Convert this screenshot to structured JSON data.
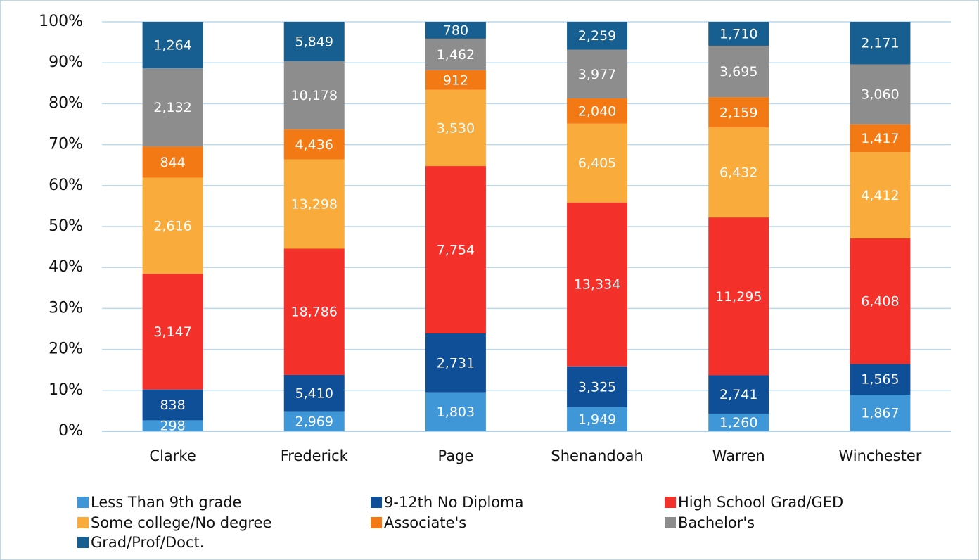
{
  "chart_data": {
    "type": "bar",
    "stacked": "percent",
    "categories": [
      "Clarke",
      "Frederick",
      "Page",
      "Shenandoah",
      "Warren",
      "Winchester"
    ],
    "series": [
      {
        "name": "Less Than 9th grade",
        "color": "#3f97d8",
        "values": [
          298,
          2969,
          1803,
          1949,
          1260,
          1867
        ],
        "value_labels": [
          "298",
          "2,969",
          "1,803",
          "1,949",
          "1,260",
          "1,867"
        ]
      },
      {
        "name": "9-12th No Diploma",
        "color": "#0f4f98",
        "values": [
          838,
          5410,
          2731,
          3325,
          2741,
          1565
        ],
        "value_labels": [
          "838",
          "5,410",
          "2,731",
          "3,325",
          "2,741",
          "1,565"
        ]
      },
      {
        "name": "High School Grad/GED",
        "color": "#f3302a",
        "values": [
          3147,
          18786,
          7754,
          13334,
          11295,
          6408
        ],
        "value_labels": [
          "3,147",
          "18,786",
          "7,754",
          "13,334",
          "11,295",
          "6,408"
        ]
      },
      {
        "name": "Some college/No degree",
        "color": "#f9ab3c",
        "values": [
          2616,
          13298,
          3530,
          6405,
          6432,
          4412
        ],
        "value_labels": [
          "2,616",
          "13,298",
          "3,530",
          "6,405",
          "6,432",
          "4,412"
        ]
      },
      {
        "name": "Associate's",
        "color": "#f37915",
        "values": [
          844,
          4436,
          912,
          2040,
          2159,
          1417
        ],
        "value_labels": [
          "844",
          "4,436",
          "912",
          "2,040",
          "2,159",
          "1,417"
        ]
      },
      {
        "name": "Bachelor's",
        "color": "#8d8d8d",
        "values": [
          2132,
          10178,
          1462,
          3977,
          3695,
          3060
        ],
        "value_labels": [
          "2,132",
          "10,178",
          "1,462",
          "3,977",
          "3,695",
          "3,060"
        ]
      },
      {
        "name": "Grad/Prof/Doct.",
        "color": "#175f90",
        "values": [
          1264,
          5849,
          780,
          2259,
          1710,
          2171
        ],
        "value_labels": [
          "1,264",
          "5,849",
          "780",
          "2,259",
          "1,710",
          "2,171"
        ]
      }
    ],
    "ylim": [
      0,
      100
    ],
    "yticks": [
      {
        "value": 0,
        "label": "0%"
      },
      {
        "value": 10,
        "label": "10%"
      },
      {
        "value": 20,
        "label": "20%"
      },
      {
        "value": 30,
        "label": "30%"
      },
      {
        "value": 40,
        "label": "40%"
      },
      {
        "value": 50,
        "label": "50%"
      },
      {
        "value": 60,
        "label": "60%"
      },
      {
        "value": 70,
        "label": "70%"
      },
      {
        "value": 80,
        "label": "80%"
      },
      {
        "value": 90,
        "label": "90%"
      },
      {
        "value": 100,
        "label": "100%"
      }
    ],
    "grid": true,
    "legend": "bottom"
  }
}
